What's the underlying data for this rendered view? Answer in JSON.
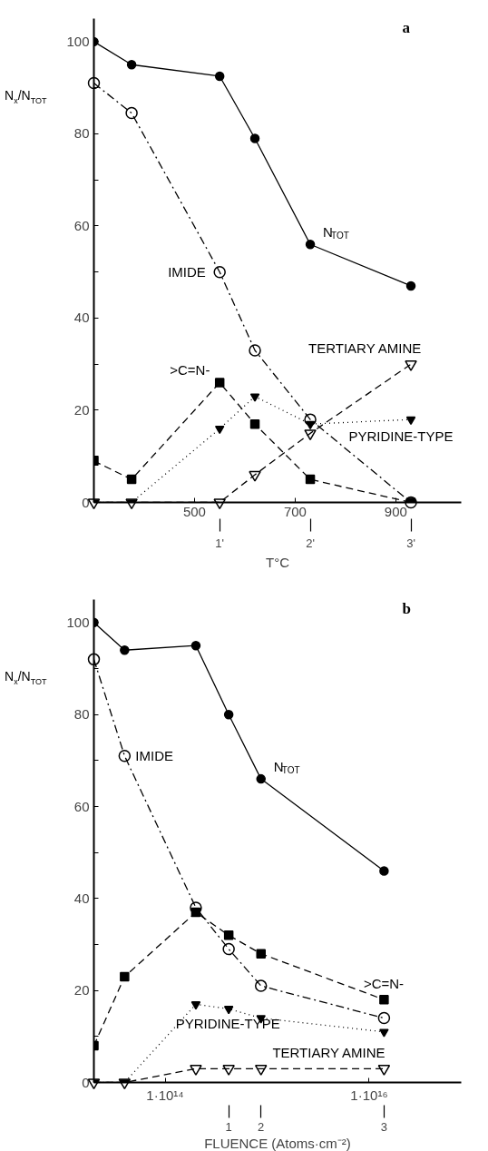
{
  "chart_data": [
    {
      "type": "line",
      "title": "a",
      "xlabel": "T°C",
      "ylabel": "N$_{x}$/N$_{TOT}$",
      "xlim": [
        300,
        1030
      ],
      "ylim": [
        0,
        105
      ],
      "xticks": [
        500,
        700,
        900
      ],
      "yticks": [
        0,
        {
          "value": 10,
          "label": null
        },
        20,
        {
          "value": 30,
          "label": null
        },
        40,
        {
          "value": 50,
          "label": null
        },
        60,
        {
          "value": 70,
          "label": null
        },
        80,
        {
          "value": 90,
          "label": null
        },
        100
      ],
      "grid": false,
      "legend": false,
      "series": [
        {
          "name": "N$_{TOT}$",
          "color": "#000000",
          "marker": "circle",
          "line_style": "solid",
          "x": [
            300,
            375,
            550,
            620,
            730,
            930
          ],
          "values": [
            100,
            95,
            92.5,
            79,
            56,
            47
          ]
        },
        {
          "name": "IMIDE",
          "color": "#000000",
          "marker": "circle",
          "line_style": "dashdot",
          "x": [
            300,
            375,
            550,
            620,
            730,
            930
          ],
          "values": [
            91,
            84.5,
            50,
            33,
            18,
            0
          ]
        },
        {
          "name": ">C=N-",
          "color": "#000000",
          "marker": "square",
          "line_style": "dashed",
          "x": [
            300,
            375,
            550,
            620,
            730,
            930
          ],
          "values": [
            9,
            5,
            26,
            17,
            5,
            0
          ]
        },
        {
          "name": "PYRIDINE-TYPE",
          "color": "#000000",
          "marker": "triangle",
          "line_style": "dotted",
          "x": [
            300,
            375,
            550,
            620,
            730,
            930
          ],
          "values": [
            0,
            0,
            16,
            23,
            17,
            18
          ]
        },
        {
          "name": "TERTIARY AMINE",
          "color": "#000000",
          "marker": "triangle",
          "line_style": "dashed",
          "x": [
            300,
            375,
            550,
            620,
            730,
            930
          ],
          "values": [
            0,
            0,
            0,
            6,
            15,
            30
          ]
        }
      ],
      "annotations": [
        {
          "text": "1'",
          "x": 550
        },
        {
          "text": "2'",
          "x": 730
        },
        {
          "text": "3'",
          "x": 930
        }
      ]
    },
    {
      "type": "line",
      "title": "b",
      "xlabel": "FLUENCE (Atoms·cm⁻²)",
      "ylabel": "N$_{x}$/N$_{TOT}$",
      "log": "x",
      "xlim": [
        20000000000000.0,
        8e+16
      ],
      "ylim": [
        0,
        105
      ],
      "xticks": [
        {
          "value": 100000000000000.0,
          "label": "1·10¹⁴"
        },
        {
          "value": 1e+16,
          "label": "1·10¹⁶"
        }
      ],
      "yticks": [
        0,
        {
          "value": 10,
          "label": null
        },
        20,
        {
          "value": 30,
          "label": null
        },
        40,
        {
          "value": 50,
          "label": null
        },
        60,
        {
          "value": 70,
          "label": null
        },
        80,
        {
          "value": 90,
          "label": null
        },
        100
      ],
      "grid": false,
      "legend": false,
      "series": [
        {
          "name": "N$_{TOT}$",
          "color": "#000000",
          "marker": "circle",
          "line_style": "solid",
          "x": [
            20000000000000.0,
            40000000000000.0,
            200000000000000.0,
            420000000000000.0,
            870000000000000.0,
            1.4e+16
          ],
          "values": [
            100,
            94,
            95,
            80,
            66,
            46
          ]
        },
        {
          "name": "IMIDE",
          "color": "#000000",
          "marker": "circle",
          "line_style": "dashdot",
          "x": [
            20000000000000.0,
            40000000000000.0,
            200000000000000.0,
            420000000000000.0,
            870000000000000.0,
            1.4e+16
          ],
          "values": [
            92,
            71,
            38,
            29,
            21,
            14
          ]
        },
        {
          "name": ">C=N-",
          "color": "#000000",
          "marker": "square",
          "line_style": "dashed",
          "x": [
            20000000000000.0,
            40000000000000.0,
            200000000000000.0,
            420000000000000.0,
            870000000000000.0,
            1.4e+16
          ],
          "values": [
            8,
            23,
            37,
            32,
            28,
            18
          ]
        },
        {
          "name": "PYRIDINE-TYPE",
          "color": "#000000",
          "marker": "triangle",
          "line_style": "dotted",
          "x": [
            20000000000000.0,
            40000000000000.0,
            200000000000000.0,
            420000000000000.0,
            870000000000000.0,
            1.4e+16
          ],
          "values": [
            0,
            0,
            17,
            16,
            14,
            11
          ]
        },
        {
          "name": "TERTIARY AMINE",
          "color": "#000000",
          "marker": "triangle",
          "line_style": "dashed",
          "x": [
            20000000000000.0,
            40000000000000.0,
            200000000000000.0,
            420000000000000.0,
            870000000000000.0,
            1.4e+16
          ],
          "values": [
            0,
            0,
            3,
            3,
            3,
            3
          ]
        }
      ],
      "annotations": [
        {
          "text": "1",
          "x": 420000000000000.0
        },
        {
          "text": "2",
          "x": 870000000000000.0
        },
        {
          "text": "3",
          "x": 1.4e+16
        }
      ]
    }
  ]
}
